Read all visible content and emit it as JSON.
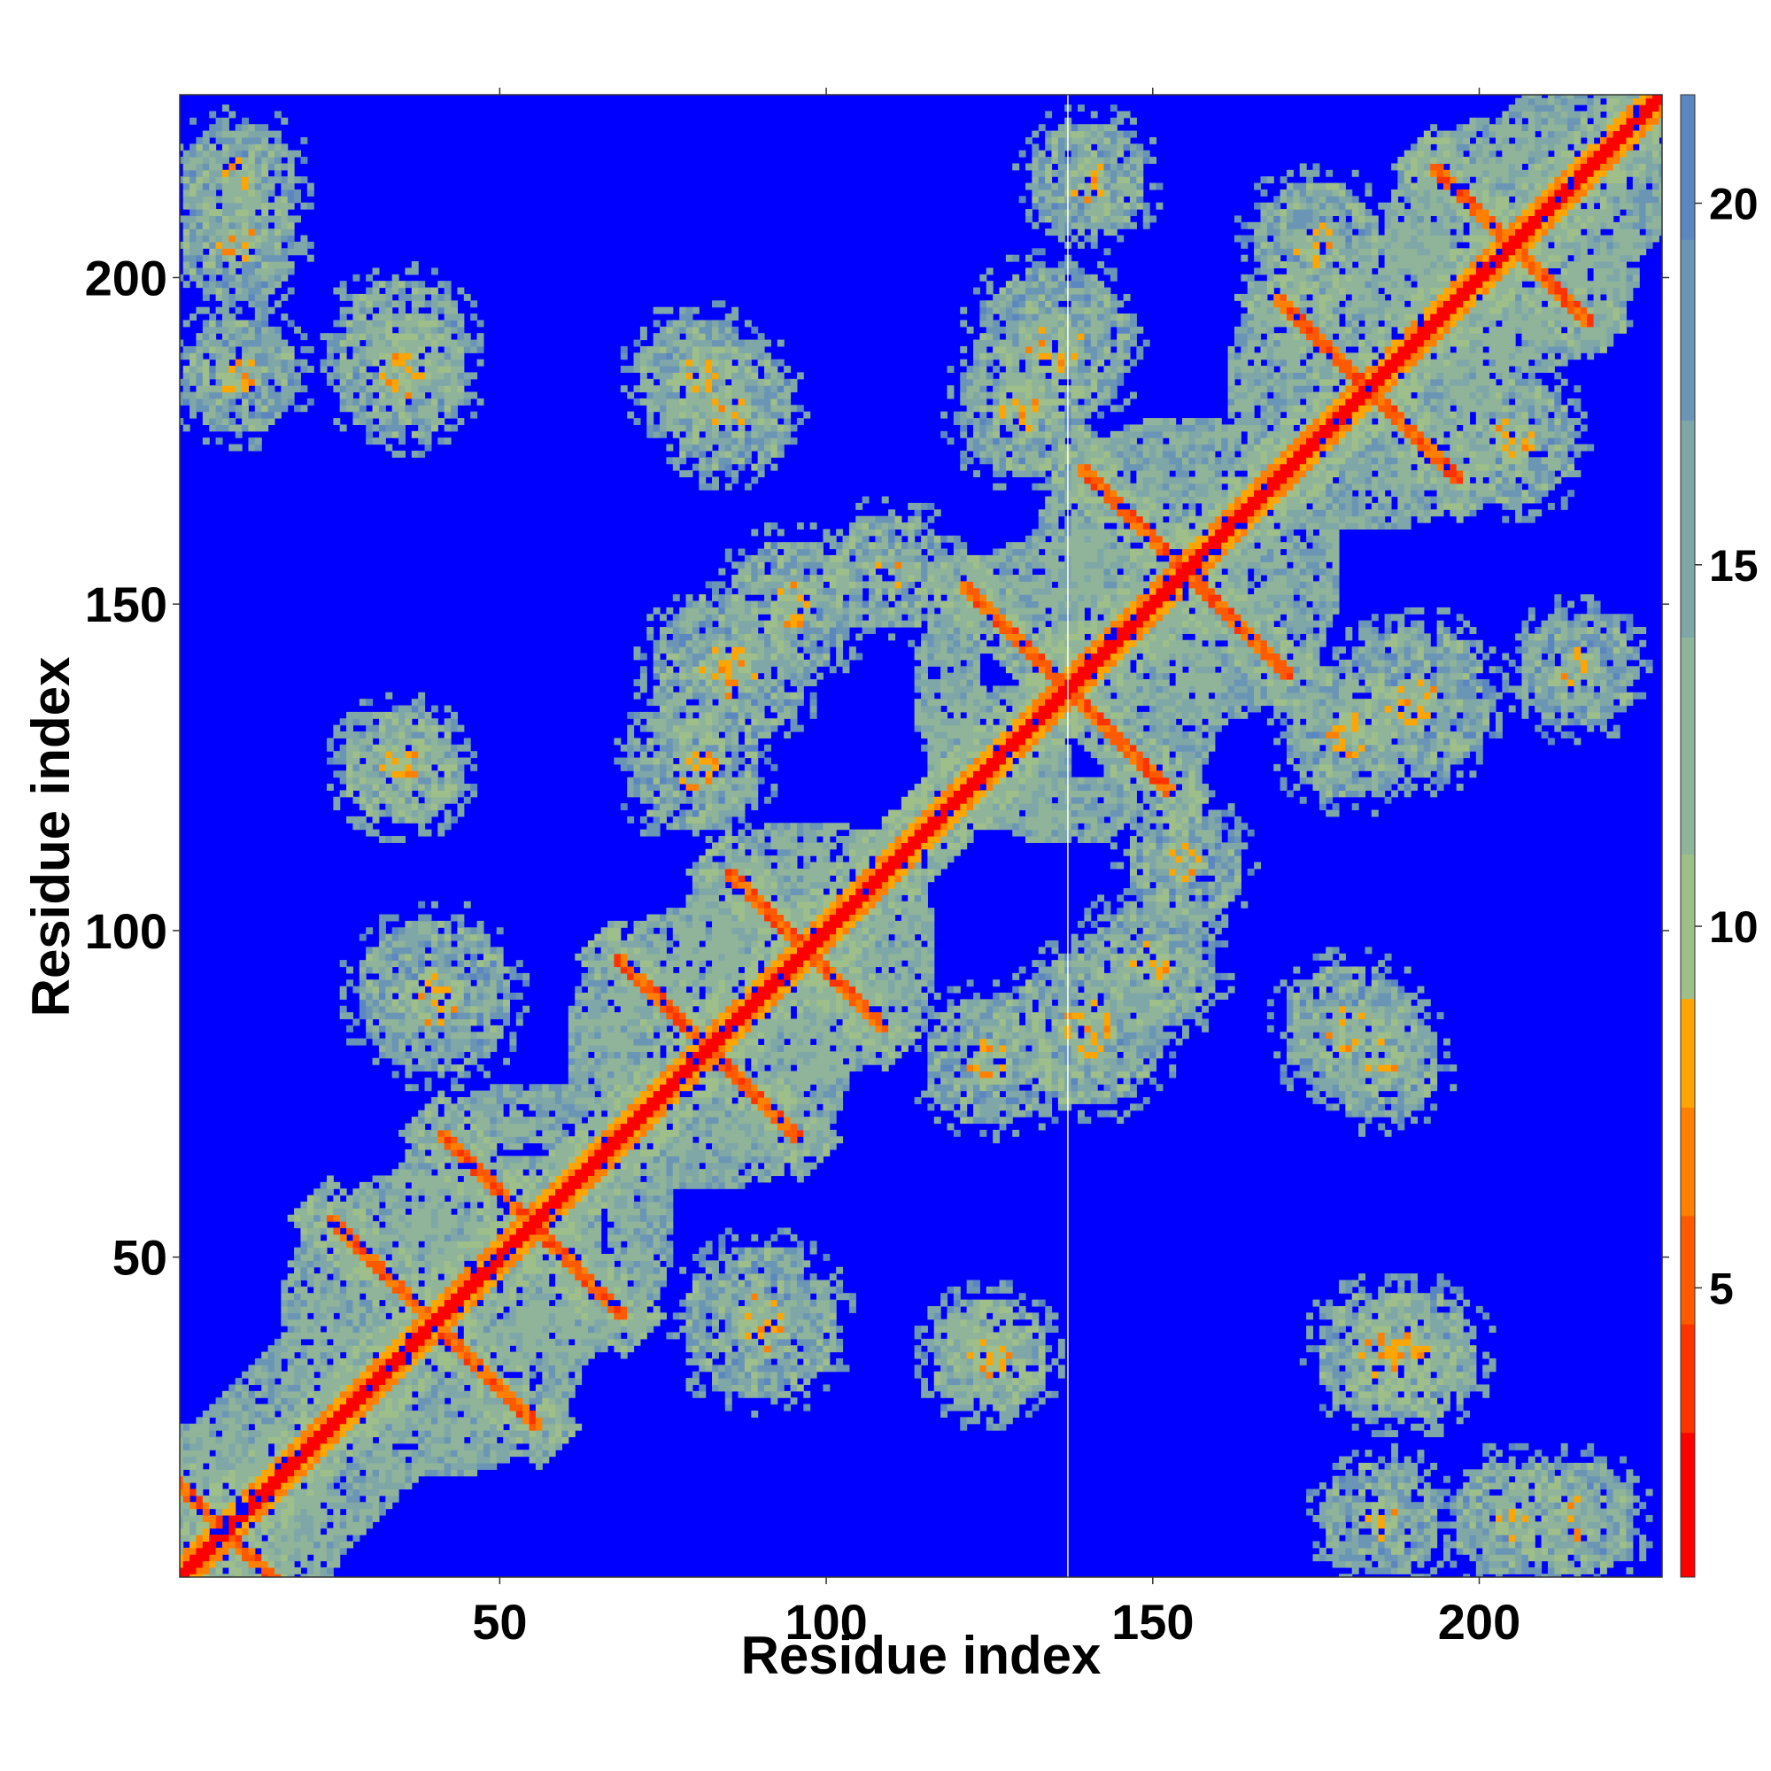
{
  "chart_data": {
    "type": "heatmap",
    "title": "",
    "xlabel": "Residue index",
    "ylabel": "Residue index",
    "xlim": [
      1,
      228
    ],
    "ylim": [
      1,
      228
    ],
    "x_ticks": [
      50,
      100,
      150,
      200
    ],
    "y_ticks": [
      50,
      100,
      150,
      200
    ],
    "colorbar": {
      "ticks": [
        5,
        10,
        15,
        20
      ],
      "range": [
        1,
        21.5
      ],
      "colors": [
        "#ff0000",
        "#ff3300",
        "#ff5a00",
        "#ff8000",
        "#ffa500",
        "#9fbf8a",
        "#8fb49a",
        "#7fa7a8",
        "#6b95b5",
        "#5b86bf",
        "#0000ff"
      ],
      "bounds": [
        1,
        3,
        4.5,
        6,
        7.5,
        9,
        11,
        14,
        17,
        19.5,
        21.5
      ]
    },
    "diagonal_band_width": 1,
    "gap_column_at_residue": 137,
    "segments": [
      {
        "from": 1,
        "to": 65
      },
      {
        "from": 60,
        "to": 115
      },
      {
        "from": 112,
        "to": 137
      },
      {
        "from": 137,
        "to": 170
      },
      {
        "from": 165,
        "to": 228
      }
    ],
    "contact_features": [
      {
        "kind": "antidiagonal",
        "center_x": 40,
        "center_y": 40,
        "half_length": 16
      },
      {
        "kind": "antidiagonal",
        "center_x": 55,
        "center_y": 55,
        "half_length": 14
      },
      {
        "kind": "antidiagonal",
        "center_x": 82,
        "center_y": 82,
        "half_length": 14
      },
      {
        "kind": "antidiagonal",
        "center_x": 97,
        "center_y": 97,
        "half_length": 12
      },
      {
        "kind": "antidiagonal",
        "center_x": 137,
        "center_y": 137,
        "half_length": 16
      },
      {
        "kind": "antidiagonal",
        "center_x": 155,
        "center_y": 155,
        "half_length": 16
      },
      {
        "kind": "antidiagonal",
        "center_x": 183,
        "center_y": 183,
        "half_length": 14
      },
      {
        "kind": "antidiagonal",
        "center_x": 205,
        "center_y": 205,
        "half_length": 12
      },
      {
        "kind": "antidiagonal",
        "center_x": 8,
        "center_y": 8,
        "half_length": 10
      },
      {
        "kind": "blob",
        "x": 35,
        "y": 190,
        "r": 10
      },
      {
        "kind": "blob",
        "x": 35,
        "y": 125,
        "r": 9
      },
      {
        "kind": "blob",
        "x": 80,
        "y": 185,
        "r": 9
      },
      {
        "kind": "blob",
        "x": 85,
        "y": 140,
        "r": 12
      },
      {
        "kind": "blob",
        "x": 130,
        "y": 180,
        "r": 10
      },
      {
        "kind": "blob",
        "x": 125,
        "y": 80,
        "r": 10
      },
      {
        "kind": "blob",
        "x": 90,
        "y": 40,
        "r": 12
      },
      {
        "kind": "blob",
        "x": 125,
        "y": 35,
        "r": 9
      },
      {
        "kind": "blob",
        "x": 180,
        "y": 85,
        "r": 10
      },
      {
        "kind": "blob",
        "x": 185,
        "y": 35,
        "r": 10
      },
      {
        "kind": "blob",
        "x": 190,
        "y": 135,
        "r": 12
      },
      {
        "kind": "blob",
        "x": 150,
        "y": 95,
        "r": 10
      },
      {
        "kind": "blob",
        "x": 215,
        "y": 140,
        "r": 9
      },
      {
        "kind": "blob",
        "x": 10,
        "y": 215,
        "r": 9
      },
      {
        "kind": "blob",
        "x": 10,
        "y": 185,
        "r": 9
      },
      {
        "kind": "blob",
        "x": 205,
        "y": 10,
        "r": 9
      },
      {
        "kind": "blob",
        "x": 175,
        "y": 205,
        "r": 10
      },
      {
        "kind": "blob",
        "x": 110,
        "y": 155,
        "r": 9
      }
    ]
  }
}
